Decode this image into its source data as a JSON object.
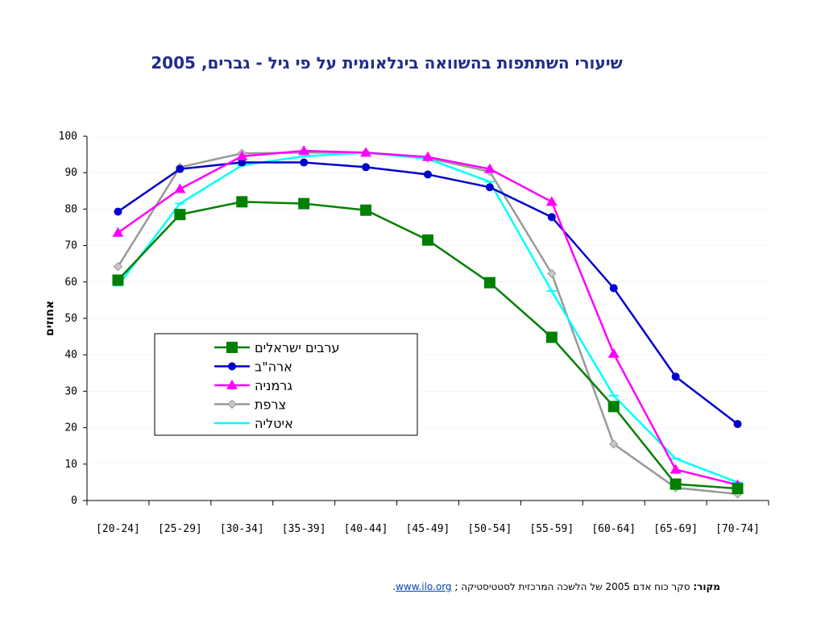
{
  "chart_data": {
    "type": "line",
    "title": "שיעורי השתתפות בהשוואה בינלאומית על פי גיל - גברים, 2005",
    "ylabel": "אחוזים",
    "xlabel": "",
    "ylim": [
      0,
      100
    ],
    "yticks": [
      0,
      10,
      20,
      30,
      40,
      50,
      60,
      70,
      80,
      90,
      100
    ],
    "categories": [
      "[20-24]",
      "[25-29]",
      "[30-34]",
      "[35-39]",
      "[40-44]",
      "[45-49]",
      "[50-54]",
      "[55-59]",
      "[60-64]",
      "[65-69]",
      "[70-74]"
    ],
    "legend_position": "center-left",
    "grid": false,
    "series": [
      {
        "name": "ערבים ישראלים",
        "color": "#008000",
        "marker": "square",
        "values": [
          60.5,
          78.5,
          82,
          81.5,
          79.7,
          71.5,
          59.8,
          44.8,
          25.8,
          4.5,
          3.3
        ]
      },
      {
        "name": "ארה\"ב",
        "color": "#0000cc",
        "marker": "circle",
        "values": [
          79.3,
          91,
          92.8,
          92.8,
          91.5,
          89.5,
          86,
          77.8,
          58.3,
          34,
          21
        ]
      },
      {
        "name": "גרמניה",
        "color": "#ff00ff",
        "marker": "triangle",
        "values": [
          73.5,
          85.5,
          94.5,
          96,
          95.5,
          94.3,
          91,
          82,
          40.3,
          8.5,
          4.3
        ]
      },
      {
        "name": "צרפת",
        "color": "#999999",
        "marker": "diamond",
        "values": [
          64.2,
          91.5,
          95.3,
          95.5,
          95.5,
          94,
          90.3,
          62.3,
          15.5,
          3.5,
          1.8
        ]
      },
      {
        "name": "איטליה",
        "color": "#00ffff",
        "marker": "dash",
        "values": [
          59,
          81.5,
          92,
          94.5,
          95.5,
          93.8,
          87.5,
          57.5,
          28.8,
          11.5,
          5
        ]
      }
    ]
  },
  "source": {
    "label": "מקור:",
    "text": "סקר כוח אדם 2005 של הלשכה המרכזית לסטטיסטיקה ;",
    "link": "www.ilo.org",
    "end": "."
  }
}
